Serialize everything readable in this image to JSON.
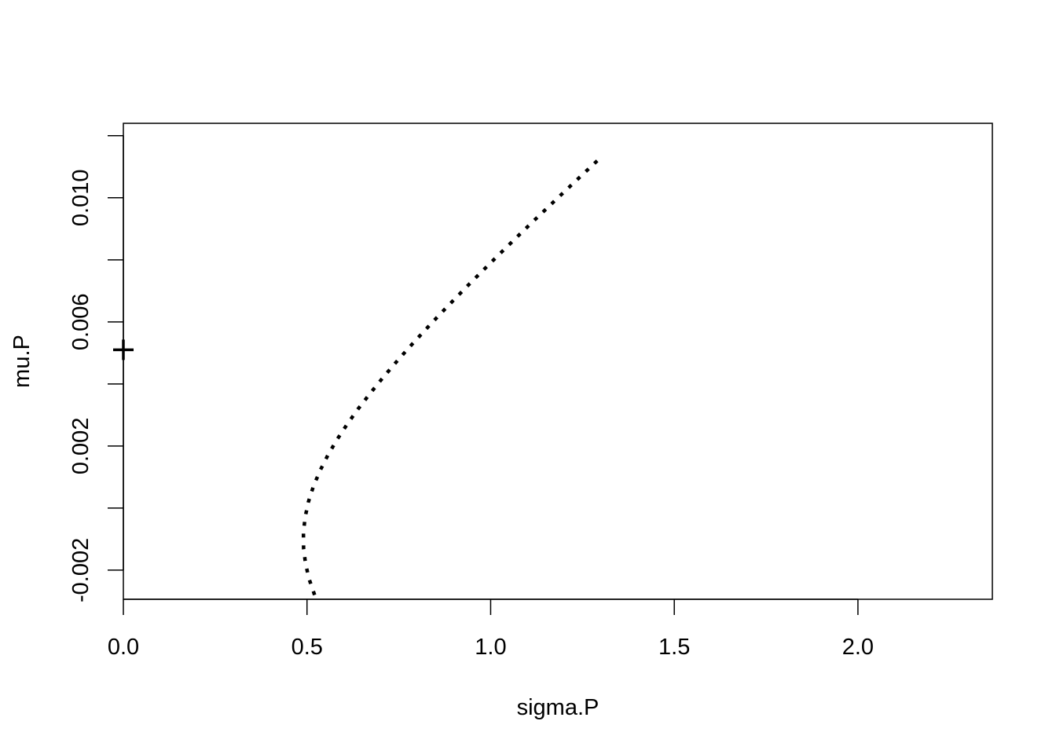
{
  "chart_data": {
    "type": "scatter",
    "title": "",
    "xlabel": "sigma.P",
    "ylabel": "mu.P",
    "xlim": [
      0,
      2.366
    ],
    "ylim": [
      -0.00294,
      0.0124
    ],
    "x_ticks": [
      0.0,
      0.5,
      1.0,
      1.5,
      2.0
    ],
    "x_tick_labels": [
      "0.0",
      "0.5",
      "1.0",
      "1.5",
      "2.0"
    ],
    "y_ticks": [
      -0.002,
      0.0,
      0.002,
      0.004,
      0.006,
      0.008,
      0.01,
      0.012
    ],
    "y_tick_labels": [
      "-0.002",
      "",
      "0.002",
      "",
      "0.006",
      "",
      "0.010",
      ""
    ],
    "grid": false,
    "series": [
      {
        "style": "dotted-line",
        "color": "#000000",
        "x": [
          0.5206,
          0.5062,
          0.4961,
          0.4908,
          0.4904,
          0.4947,
          0.5038,
          0.5174,
          0.5352,
          0.5567,
          0.5815,
          0.6093,
          0.6396,
          0.6721,
          0.7065,
          0.7426,
          0.78,
          0.8187,
          0.8584,
          0.899,
          0.9404,
          0.9826,
          1.0253,
          1.0685,
          1.1122,
          1.1564,
          1.2009,
          1.2458,
          1.2909,
          1.3
        ],
        "y": [
          -0.0028,
          -0.0023,
          -0.0018,
          -0.0013,
          -0.0008,
          -0.0003,
          0.0002,
          0.0007,
          0.0012,
          0.0017,
          0.0022,
          0.0027,
          0.0032,
          0.0037,
          0.0042,
          0.0047,
          0.0052,
          0.0057,
          0.0062,
          0.0067,
          0.0072,
          0.0077,
          0.0082,
          0.0087,
          0.0092,
          0.0097,
          0.0102,
          0.0107,
          0.0112,
          0.0113
        ]
      },
      {
        "style": "plus-point",
        "color": "#000000",
        "x": [
          0.0
        ],
        "y": [
          0.0051
        ]
      }
    ]
  }
}
